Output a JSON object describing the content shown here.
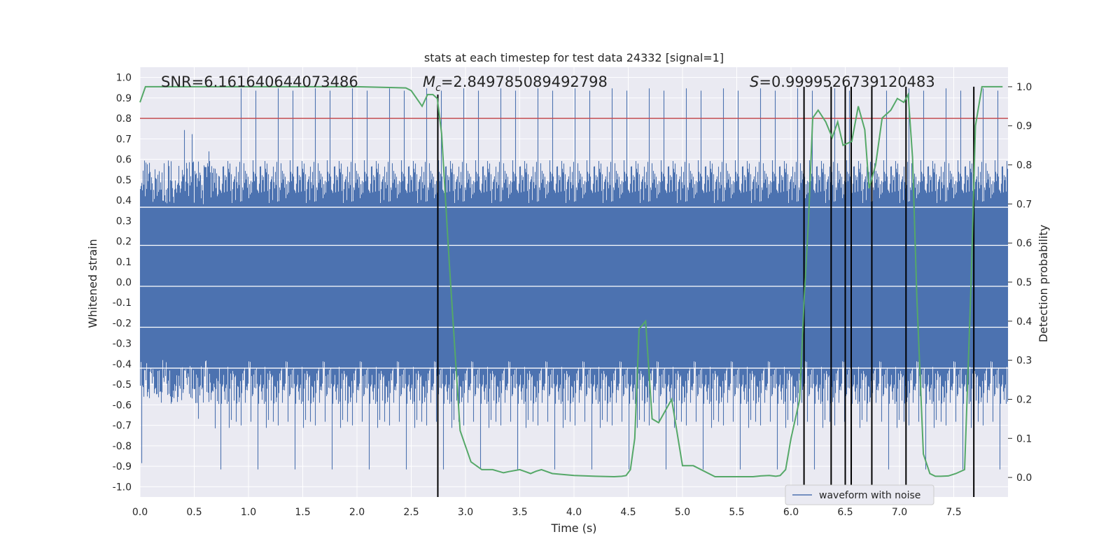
{
  "chart_data": {
    "type": "line",
    "title": "stats at each timestep for test data 24332 [signal=1]",
    "xlabel": "Time (s)",
    "ylabel": "Whitened strain",
    "ylabel_right": "Detection probability",
    "xlim": [
      0.0,
      8.0
    ],
    "ylim": [
      -1.05,
      1.05
    ],
    "ylim_right": [
      -0.05,
      1.05
    ],
    "xticks": [
      0.0,
      0.5,
      1.0,
      1.5,
      2.0,
      2.5,
      3.0,
      3.5,
      4.0,
      4.5,
      5.0,
      5.5,
      6.0,
      6.5,
      7.0,
      7.5
    ],
    "xtick_labels": [
      "0.0",
      "0.5",
      "1.0",
      "1.5",
      "2.0",
      "2.5",
      "3.0",
      "3.5",
      "4.0",
      "4.5",
      "5.0",
      "5.5",
      "6.0",
      "6.5",
      "7.0",
      "7.5"
    ],
    "yticks": [
      1.0,
      0.9,
      0.8,
      0.7,
      0.6,
      0.5,
      0.4,
      0.3,
      0.2,
      0.1,
      0.0,
      -0.1,
      -0.2,
      -0.3,
      -0.4,
      -0.5,
      -0.6,
      -0.7,
      -0.8,
      -0.9,
      -1.0
    ],
    "ytick_labels": [
      "1.0",
      "0.9",
      "0.8",
      "0.7",
      "0.6",
      "0.5",
      "0.4",
      "0.3",
      "0.2",
      "0.1",
      "0.0",
      "-0.1",
      "-0.2",
      "-0.3",
      "-0.4",
      "-0.5",
      "-0.6",
      "-0.7",
      "-0.8",
      "-0.9",
      "-1.0"
    ],
    "yticks_right": [
      1.0,
      0.9,
      0.8,
      0.7,
      0.6,
      0.5,
      0.4,
      0.3,
      0.2,
      0.1,
      0.0
    ],
    "ytick_labels_right": [
      "1.0",
      "0.9",
      "0.8",
      "0.7",
      "0.6",
      "0.5",
      "0.4",
      "0.3",
      "0.2",
      "0.1",
      "0.0"
    ],
    "annotations": {
      "snr": "SNR=6.161640644073486",
      "mc_symbol": "M",
      "mc_sub": "c",
      "mc_value": "=2.849785089492798",
      "s_symbol": "S",
      "s_value": "=0.9999526739120483"
    },
    "threshold": {
      "y": 0.8,
      "color": "#c44e52"
    },
    "legend": {
      "label": "waveform with noise",
      "location": "lower-right"
    },
    "waveform": {
      "name": "waveform with noise",
      "color": "#4c72b0",
      "envelope_core": 0.38,
      "typical_peak": 0.62,
      "max_peak": 1.0,
      "min_trough": -0.95
    },
    "detection_probability": {
      "name": "detection probability",
      "color": "#55a868",
      "x": [
        0.0,
        0.05,
        0.1,
        0.5,
        1.0,
        1.5,
        2.0,
        2.3,
        2.45,
        2.5,
        2.55,
        2.6,
        2.65,
        2.7,
        2.74,
        2.78,
        2.85,
        2.95,
        3.05,
        3.15,
        3.25,
        3.35,
        3.4,
        3.5,
        3.55,
        3.6,
        3.65,
        3.7,
        3.8,
        4.0,
        4.2,
        4.37,
        4.44,
        4.48,
        4.52,
        4.56,
        4.6,
        4.66,
        4.72,
        4.78,
        4.9,
        5.0,
        5.1,
        5.3,
        5.5,
        5.65,
        5.72,
        5.8,
        5.86,
        5.9,
        5.95,
        6.0,
        6.08,
        6.12,
        6.16,
        6.2,
        6.25,
        6.32,
        6.38,
        6.43,
        6.48,
        6.56,
        6.62,
        6.68,
        6.72,
        6.78,
        6.84,
        6.92,
        6.98,
        7.04,
        7.08,
        7.12,
        7.16,
        7.22,
        7.28,
        7.33,
        7.38,
        7.45,
        7.52,
        7.6,
        7.66,
        7.7,
        7.76,
        7.82,
        7.9,
        7.95
      ],
      "y": [
        0.96,
        1.0,
        1.0,
        1.0,
        1.0,
        1.0,
        1.0,
        0.998,
        0.997,
        0.99,
        0.97,
        0.95,
        0.98,
        0.98,
        0.97,
        0.88,
        0.55,
        0.12,
        0.04,
        0.02,
        0.02,
        0.012,
        0.015,
        0.02,
        0.015,
        0.01,
        0.016,
        0.02,
        0.01,
        0.005,
        0.003,
        0.002,
        0.003,
        0.005,
        0.02,
        0.1,
        0.38,
        0.4,
        0.15,
        0.14,
        0.2,
        0.03,
        0.03,
        0.002,
        0.002,
        0.002,
        0.004,
        0.005,
        0.003,
        0.005,
        0.02,
        0.1,
        0.2,
        0.45,
        0.65,
        0.92,
        0.94,
        0.91,
        0.87,
        0.91,
        0.85,
        0.86,
        0.95,
        0.89,
        0.74,
        0.8,
        0.92,
        0.94,
        0.97,
        0.96,
        0.98,
        0.82,
        0.46,
        0.06,
        0.01,
        0.003,
        0.003,
        0.004,
        0.01,
        0.02,
        0.5,
        0.9,
        1.0,
        1.0,
        1.0,
        1.0
      ]
    },
    "event_lines": {
      "color": "#000000",
      "x": [
        2.745,
        6.12,
        6.37,
        6.5,
        6.555,
        6.745,
        7.06,
        7.685
      ],
      "y_bottom": -0.05,
      "y_top": 1.0,
      "y_top_special": 0.98
    }
  }
}
